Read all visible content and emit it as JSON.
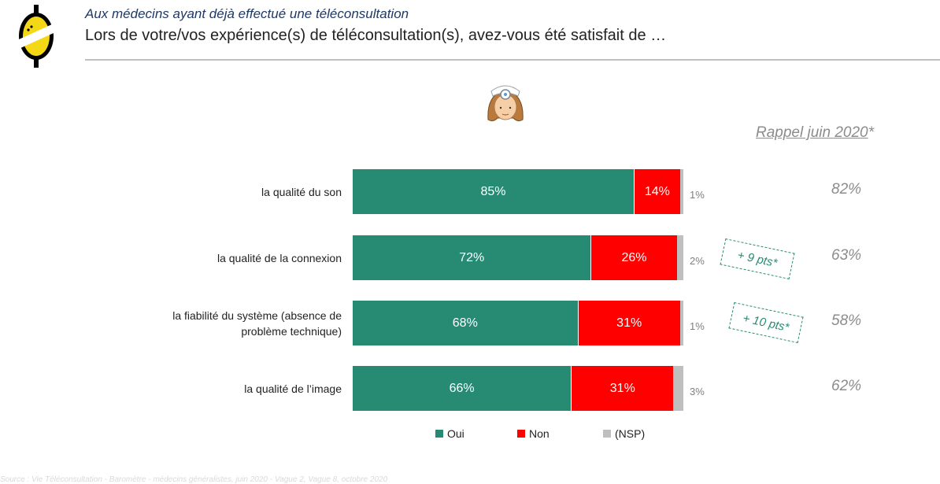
{
  "header": {
    "subtitle": "Aux médecins ayant déjà effectué une téléconsultation",
    "title": "Lors de votre/vos expérience(s) de téléconsultation(s), avez-vous été satisfait de …"
  },
  "icons": {
    "logo": "yellow-oval-logo-icon",
    "doctor": "doctor-avatar-icon"
  },
  "recall": {
    "header": "Rappel juin 2020",
    "asterisk": "*"
  },
  "colors": {
    "oui": "#278b74",
    "non": "#ff0000",
    "nsp": "#bfbfbf",
    "recall": "#8c8c8c"
  },
  "chart_data": {
    "type": "bar",
    "orientation": "horizontal",
    "stacked": true,
    "xlim": [
      0,
      100
    ],
    "categories": [
      "la qualité du son",
      "la qualité de la connexion",
      "la fiabilité du système (absence de problème technique)",
      "la qualité de l’image"
    ],
    "series": [
      {
        "name": "Oui",
        "values": [
          85,
          72,
          68,
          66
        ],
        "labels": [
          "85%",
          "72%",
          "68%",
          "66%"
        ]
      },
      {
        "name": "Non",
        "values": [
          14,
          26,
          31,
          31
        ],
        "labels": [
          "14%",
          "26%",
          "31%",
          "31%"
        ]
      },
      {
        "name": "(NSP)",
        "values": [
          1,
          2,
          1,
          3
        ],
        "labels": [
          "1%",
          "2%",
          "1%",
          "3%"
        ]
      }
    ],
    "recall_values": [
      "82%",
      "63%",
      "58%",
      "62%"
    ],
    "deltas": [
      "",
      "+ 9 pts*",
      "+ 10 pts*",
      ""
    ],
    "legend_position": "bottom"
  },
  "footer": {
    "source": "Source : Vie Téléconsultation - Baromètre - médecins généralistes, juin 2020 - Vague 2, Vague 8, octobre 2020"
  }
}
